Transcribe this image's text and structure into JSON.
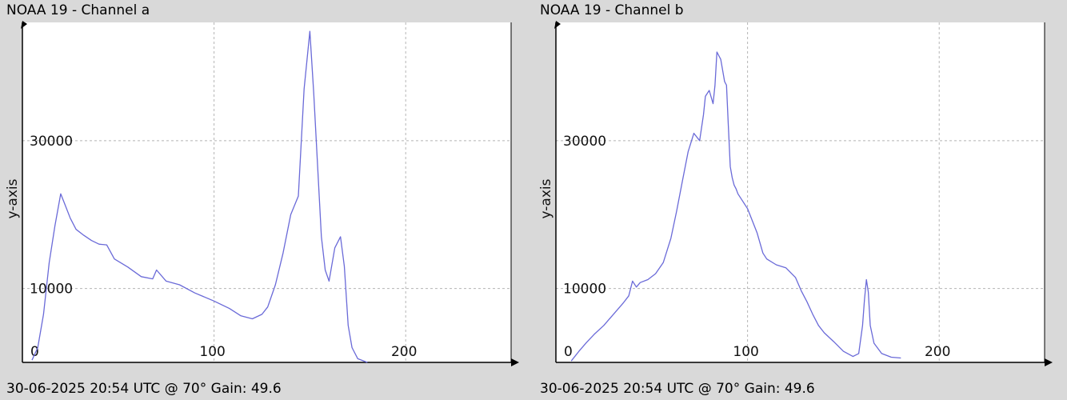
{
  "colors": {
    "background": "#d9d9d9",
    "plot_background": "#ffffff",
    "line": "#6a6ad8",
    "grid": "#b4b4b4",
    "axis": "#000000"
  },
  "chart_data": [
    {
      "type": "line",
      "title": "NOAA 19 - Channel a",
      "footer": "30-06-2025 20:54 UTC @ 70° Gain: 49.6",
      "xlabel": "",
      "ylabel": "y-axis",
      "xlim": [
        0,
        255
      ],
      "ylim": [
        0,
        46000
      ],
      "x_ticks": [
        0,
        100,
        200
      ],
      "x_tick_labels": [
        "0",
        "100",
        "200"
      ],
      "y_ticks": [
        10000,
        30000
      ],
      "y_tick_labels": [
        "10000",
        "30000"
      ],
      "grid": true,
      "series": [
        {
          "x": [
            5,
            8,
            11,
            14,
            17,
            20,
            22,
            25,
            28,
            32,
            36,
            40,
            44,
            48,
            55,
            62,
            68,
            70,
            75,
            82,
            90,
            100,
            108,
            114,
            120,
            125,
            128,
            132,
            136,
            140,
            144,
            147,
            150,
            152,
            156,
            158,
            160,
            163,
            166,
            168,
            170,
            172,
            175,
            180
          ],
          "y": [
            300,
            2000,
            6500,
            13500,
            18500,
            22800,
            21500,
            19500,
            18000,
            17200,
            16500,
            16000,
            15900,
            14000,
            12900,
            11600,
            11300,
            12500,
            11000,
            10500,
            9400,
            8300,
            7300,
            6300,
            5900,
            6500,
            7500,
            10500,
            14800,
            20000,
            22500,
            37000,
            44800,
            36500,
            17000,
            12500,
            11000,
            15500,
            17000,
            13000,
            5000,
            2000,
            500,
            0
          ]
        }
      ]
    },
    {
      "type": "line",
      "title": "NOAA 19 - Channel b",
      "footer": "30-06-2025 20:54 UTC @ 70° Gain: 49.6",
      "xlabel": "",
      "ylabel": "y-axis",
      "xlim": [
        0,
        255
      ],
      "ylim": [
        0,
        46000
      ],
      "x_ticks": [
        0,
        100,
        200
      ],
      "x_tick_labels": [
        "0",
        "100",
        "200"
      ],
      "y_ticks": [
        10000,
        30000
      ],
      "y_tick_labels": [
        "10000",
        "30000"
      ],
      "grid": true,
      "series": [
        {
          "x": [
            8,
            12,
            16,
            20,
            25,
            30,
            35,
            38,
            40,
            42,
            44,
            48,
            52,
            56,
            60,
            63,
            66,
            69,
            72,
            75,
            77,
            78,
            80,
            82,
            83,
            84,
            86,
            88,
            89,
            90,
            91,
            92,
            93,
            94,
            95,
            97,
            100,
            105,
            108,
            110,
            115,
            120,
            125,
            128,
            131,
            134,
            137,
            140,
            145,
            150,
            155,
            158,
            160,
            161,
            162,
            163,
            164,
            166,
            170,
            175,
            180
          ],
          "y": [
            200,
            1500,
            2700,
            3800,
            5000,
            6500,
            8000,
            9000,
            11000,
            10200,
            10800,
            11200,
            12000,
            13500,
            16800,
            20500,
            24500,
            28500,
            31000,
            30000,
            33500,
            36000,
            36800,
            35000,
            37500,
            42000,
            41000,
            38000,
            37500,
            32000,
            26500,
            25000,
            24000,
            23500,
            22800,
            22000,
            20800,
            17500,
            14800,
            14000,
            13200,
            12800,
            11500,
            9700,
            8200,
            6500,
            5000,
            4000,
            2800,
            1500,
            800,
            1200,
            5000,
            8500,
            11200,
            9500,
            5000,
            2600,
            1200,
            700,
            600
          ]
        }
      ]
    }
  ]
}
